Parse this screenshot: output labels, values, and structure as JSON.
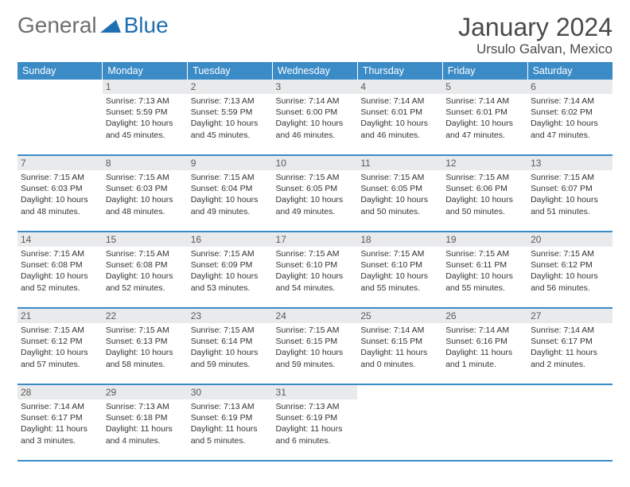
{
  "brand": {
    "part1": "General",
    "part2": "Blue"
  },
  "header": {
    "month_title": "January 2024",
    "location": "Ursulo Galvan, Mexico"
  },
  "colors": {
    "header_bg": "#3b8bc7",
    "daynum_bg": "#e9eaec",
    "border": "#3b8bc7",
    "logo_gray": "#6d6e71",
    "logo_blue": "#1f6fb2"
  },
  "weekdays": [
    "Sunday",
    "Monday",
    "Tuesday",
    "Wednesday",
    "Thursday",
    "Friday",
    "Saturday"
  ],
  "weeks": [
    [
      {
        "day": "",
        "sunrise": "",
        "sunset": "",
        "daylight": ""
      },
      {
        "day": "1",
        "sunrise": "Sunrise: 7:13 AM",
        "sunset": "Sunset: 5:59 PM",
        "daylight": "Daylight: 10 hours and 45 minutes."
      },
      {
        "day": "2",
        "sunrise": "Sunrise: 7:13 AM",
        "sunset": "Sunset: 5:59 PM",
        "daylight": "Daylight: 10 hours and 45 minutes."
      },
      {
        "day": "3",
        "sunrise": "Sunrise: 7:14 AM",
        "sunset": "Sunset: 6:00 PM",
        "daylight": "Daylight: 10 hours and 46 minutes."
      },
      {
        "day": "4",
        "sunrise": "Sunrise: 7:14 AM",
        "sunset": "Sunset: 6:01 PM",
        "daylight": "Daylight: 10 hours and 46 minutes."
      },
      {
        "day": "5",
        "sunrise": "Sunrise: 7:14 AM",
        "sunset": "Sunset: 6:01 PM",
        "daylight": "Daylight: 10 hours and 47 minutes."
      },
      {
        "day": "6",
        "sunrise": "Sunrise: 7:14 AM",
        "sunset": "Sunset: 6:02 PM",
        "daylight": "Daylight: 10 hours and 47 minutes."
      }
    ],
    [
      {
        "day": "7",
        "sunrise": "Sunrise: 7:15 AM",
        "sunset": "Sunset: 6:03 PM",
        "daylight": "Daylight: 10 hours and 48 minutes."
      },
      {
        "day": "8",
        "sunrise": "Sunrise: 7:15 AM",
        "sunset": "Sunset: 6:03 PM",
        "daylight": "Daylight: 10 hours and 48 minutes."
      },
      {
        "day": "9",
        "sunrise": "Sunrise: 7:15 AM",
        "sunset": "Sunset: 6:04 PM",
        "daylight": "Daylight: 10 hours and 49 minutes."
      },
      {
        "day": "10",
        "sunrise": "Sunrise: 7:15 AM",
        "sunset": "Sunset: 6:05 PM",
        "daylight": "Daylight: 10 hours and 49 minutes."
      },
      {
        "day": "11",
        "sunrise": "Sunrise: 7:15 AM",
        "sunset": "Sunset: 6:05 PM",
        "daylight": "Daylight: 10 hours and 50 minutes."
      },
      {
        "day": "12",
        "sunrise": "Sunrise: 7:15 AM",
        "sunset": "Sunset: 6:06 PM",
        "daylight": "Daylight: 10 hours and 50 minutes."
      },
      {
        "day": "13",
        "sunrise": "Sunrise: 7:15 AM",
        "sunset": "Sunset: 6:07 PM",
        "daylight": "Daylight: 10 hours and 51 minutes."
      }
    ],
    [
      {
        "day": "14",
        "sunrise": "Sunrise: 7:15 AM",
        "sunset": "Sunset: 6:08 PM",
        "daylight": "Daylight: 10 hours and 52 minutes."
      },
      {
        "day": "15",
        "sunrise": "Sunrise: 7:15 AM",
        "sunset": "Sunset: 6:08 PM",
        "daylight": "Daylight: 10 hours and 52 minutes."
      },
      {
        "day": "16",
        "sunrise": "Sunrise: 7:15 AM",
        "sunset": "Sunset: 6:09 PM",
        "daylight": "Daylight: 10 hours and 53 minutes."
      },
      {
        "day": "17",
        "sunrise": "Sunrise: 7:15 AM",
        "sunset": "Sunset: 6:10 PM",
        "daylight": "Daylight: 10 hours and 54 minutes."
      },
      {
        "day": "18",
        "sunrise": "Sunrise: 7:15 AM",
        "sunset": "Sunset: 6:10 PM",
        "daylight": "Daylight: 10 hours and 55 minutes."
      },
      {
        "day": "19",
        "sunrise": "Sunrise: 7:15 AM",
        "sunset": "Sunset: 6:11 PM",
        "daylight": "Daylight: 10 hours and 55 minutes."
      },
      {
        "day": "20",
        "sunrise": "Sunrise: 7:15 AM",
        "sunset": "Sunset: 6:12 PM",
        "daylight": "Daylight: 10 hours and 56 minutes."
      }
    ],
    [
      {
        "day": "21",
        "sunrise": "Sunrise: 7:15 AM",
        "sunset": "Sunset: 6:12 PM",
        "daylight": "Daylight: 10 hours and 57 minutes."
      },
      {
        "day": "22",
        "sunrise": "Sunrise: 7:15 AM",
        "sunset": "Sunset: 6:13 PM",
        "daylight": "Daylight: 10 hours and 58 minutes."
      },
      {
        "day": "23",
        "sunrise": "Sunrise: 7:15 AM",
        "sunset": "Sunset: 6:14 PM",
        "daylight": "Daylight: 10 hours and 59 minutes."
      },
      {
        "day": "24",
        "sunrise": "Sunrise: 7:15 AM",
        "sunset": "Sunset: 6:15 PM",
        "daylight": "Daylight: 10 hours and 59 minutes."
      },
      {
        "day": "25",
        "sunrise": "Sunrise: 7:14 AM",
        "sunset": "Sunset: 6:15 PM",
        "daylight": "Daylight: 11 hours and 0 minutes."
      },
      {
        "day": "26",
        "sunrise": "Sunrise: 7:14 AM",
        "sunset": "Sunset: 6:16 PM",
        "daylight": "Daylight: 11 hours and 1 minute."
      },
      {
        "day": "27",
        "sunrise": "Sunrise: 7:14 AM",
        "sunset": "Sunset: 6:17 PM",
        "daylight": "Daylight: 11 hours and 2 minutes."
      }
    ],
    [
      {
        "day": "28",
        "sunrise": "Sunrise: 7:14 AM",
        "sunset": "Sunset: 6:17 PM",
        "daylight": "Daylight: 11 hours and 3 minutes."
      },
      {
        "day": "29",
        "sunrise": "Sunrise: 7:13 AM",
        "sunset": "Sunset: 6:18 PM",
        "daylight": "Daylight: 11 hours and 4 minutes."
      },
      {
        "day": "30",
        "sunrise": "Sunrise: 7:13 AM",
        "sunset": "Sunset: 6:19 PM",
        "daylight": "Daylight: 11 hours and 5 minutes."
      },
      {
        "day": "31",
        "sunrise": "Sunrise: 7:13 AM",
        "sunset": "Sunset: 6:19 PM",
        "daylight": "Daylight: 11 hours and 6 minutes."
      },
      {
        "day": "",
        "sunrise": "",
        "sunset": "",
        "daylight": ""
      },
      {
        "day": "",
        "sunrise": "",
        "sunset": "",
        "daylight": ""
      },
      {
        "day": "",
        "sunrise": "",
        "sunset": "",
        "daylight": ""
      }
    ]
  ]
}
